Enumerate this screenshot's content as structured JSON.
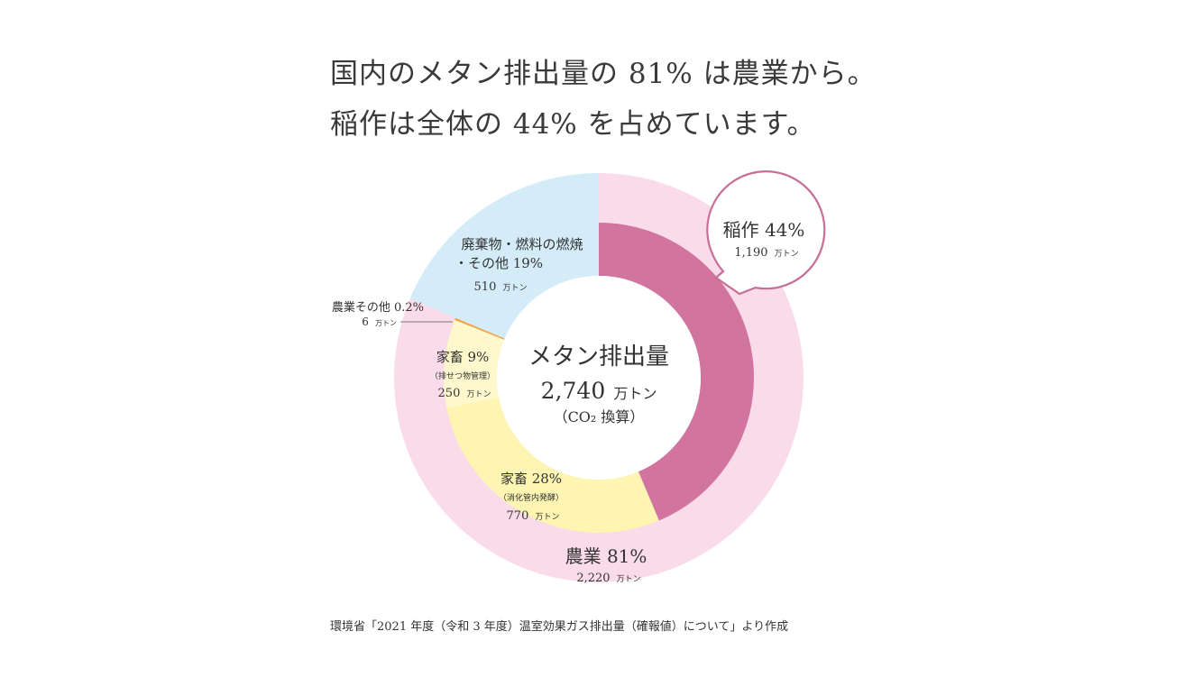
{
  "headline": {
    "line1": "国内のメタン排出量の 81% は農業から。",
    "line2": "稲作は全体の 44% を占めています。"
  },
  "source": "環境省「2021 年度（令和 3 年度）温室効果ガス排出量（確報値）について」より作成",
  "chart_data": {
    "type": "pie",
    "subtype": "nested-donut",
    "center": {
      "title": "メタン排出量",
      "value": "2,740",
      "unit": "万トン",
      "note": "（CO₂ 換算）"
    },
    "total": 2740,
    "outer_ring": [
      {
        "label": "農業 81%",
        "amount": "2,220",
        "unit": "万トン",
        "value": 2220,
        "color": "#fadbe9"
      },
      {
        "label": "廃棄物・燃料の燃焼・その他 19%",
        "amount": "510",
        "unit": "万トン",
        "value": 510,
        "color": "#d3ecf8"
      }
    ],
    "inner_ring": [
      {
        "key": "rice",
        "name": "稲作 44%",
        "amount": "1,190",
        "unit": "万トン",
        "value": 1190,
        "color": "#d175a0"
      },
      {
        "key": "enteric",
        "name": "家畜 28%",
        "sub": "（消化管内発酵）",
        "amount": "770",
        "unit": "万トン",
        "value": 770,
        "color": "#fdf5b1"
      },
      {
        "key": "manure",
        "name": "家畜 9%",
        "sub": "（排せつ物管理）",
        "amount": "250",
        "unit": "万トン",
        "value": 250,
        "color": "#fef8cc"
      },
      {
        "key": "agri_other",
        "name": "農業その他 0.2%",
        "amount": "6",
        "unit": "万トン",
        "value": 6,
        "color": "#f2a348"
      },
      {
        "key": "waste",
        "name": "廃棄物・燃料の燃焼",
        "name2": "・その他 19%",
        "amount": "510",
        "unit": "万トン",
        "value": 510,
        "color": "#d3ecf8"
      }
    ],
    "callout": {
      "name": "稲作 44%",
      "amount": "1,190",
      "unit": "万トン",
      "border_color": "#c76f98"
    }
  }
}
